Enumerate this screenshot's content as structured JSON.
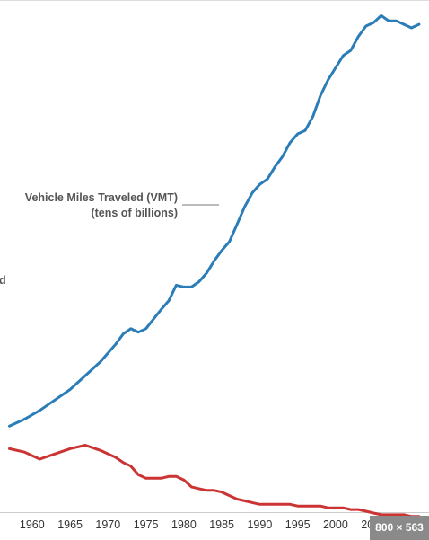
{
  "chart_data": {
    "type": "line",
    "x": [
      1957,
      1959,
      1961,
      1963,
      1965,
      1967,
      1969,
      1971,
      1972,
      1973,
      1974,
      1975,
      1977,
      1978,
      1979,
      1980,
      1981,
      1982,
      1983,
      1984,
      1985,
      1986,
      1987,
      1988,
      1989,
      1990,
      1991,
      1992,
      1993,
      1994,
      1995,
      1996,
      1997,
      1998,
      1999,
      2000,
      2001,
      2002,
      2003,
      2004,
      2005,
      2006,
      2007,
      2008,
      2009,
      2010,
      2011
    ],
    "series": [
      {
        "name": "Vehicle Miles Traveled (VMT)",
        "color": "#2b7db8",
        "values": [
          65,
          69,
          74,
          80,
          86,
          94,
          102,
          112,
          118,
          121,
          119,
          121,
          132,
          137,
          146,
          145,
          145,
          148,
          153,
          160,
          166,
          171,
          181,
          191,
          199,
          204,
          207,
          214,
          220,
          228,
          233,
          235,
          243,
          255,
          264,
          271,
          278,
          281,
          289,
          295,
          297,
          301,
          298,
          298,
          296,
          294,
          296
        ]
      },
      {
        "name": "",
        "color": "#cc3333",
        "values": [
          52,
          50,
          46,
          49,
          52,
          54,
          51,
          47,
          44,
          42,
          37,
          35,
          35,
          36,
          36,
          34,
          30,
          29,
          28,
          28,
          27,
          25,
          23,
          22,
          21,
          20,
          20,
          20,
          20,
          20,
          19,
          19,
          19,
          19,
          18,
          18,
          18,
          17,
          17,
          16,
          15,
          14,
          14,
          14,
          14,
          13,
          13
        ]
      }
    ],
    "annotation_line1": "Vehicle Miles Traveled (VMT)",
    "annotation_line2": "(tens of billions)",
    "partial_left_text": "d",
    "xlim": [
      1956,
      2011.6
    ],
    "ylim": [
      0,
      310
    ],
    "x_ticks": [
      1960,
      1965,
      1970,
      1975,
      1980,
      1985,
      1990,
      1995,
      2000,
      2005,
      2010
    ],
    "x_tick_labels": [
      "1960",
      "1965",
      "1970",
      "1975",
      "1980",
      "1985",
      "1990",
      "1995",
      "2000",
      "2005",
      "2010"
    ],
    "grid": false,
    "legend": "none"
  },
  "overlay": {
    "size_badge": "800 × 563"
  }
}
